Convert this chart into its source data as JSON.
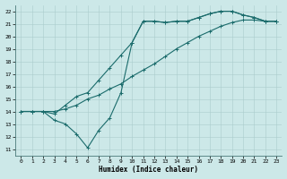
{
  "xlabel": "Humidex (Indice chaleur)",
  "bg_color": "#cce8e8",
  "line_color": "#1a6b6b",
  "grid_color": "#aacccc",
  "xlim": [
    -0.5,
    23.5
  ],
  "ylim": [
    10.5,
    22.5
  ],
  "xticks": [
    0,
    1,
    2,
    3,
    4,
    5,
    6,
    7,
    8,
    9,
    10,
    11,
    12,
    13,
    14,
    15,
    16,
    17,
    18,
    19,
    20,
    21,
    22,
    23
  ],
  "yticks": [
    11,
    12,
    13,
    14,
    15,
    16,
    17,
    18,
    19,
    20,
    21,
    22
  ],
  "line_straight": {
    "x": [
      0,
      1,
      2,
      3,
      4,
      5,
      6,
      7,
      8,
      9,
      10,
      11,
      12,
      13,
      14,
      15,
      16,
      17,
      18,
      19,
      20,
      21,
      22,
      23
    ],
    "y": [
      14,
      14,
      14,
      14,
      14.2,
      14.5,
      15.0,
      15.3,
      15.8,
      16.2,
      16.8,
      17.3,
      17.8,
      18.4,
      19.0,
      19.5,
      20.0,
      20.4,
      20.8,
      21.1,
      21.3,
      21.3,
      21.2,
      21.2
    ]
  },
  "line_middle": {
    "x": [
      0,
      1,
      2,
      3,
      4,
      5,
      6,
      7,
      8,
      9,
      10,
      11,
      12,
      13,
      14,
      15,
      16,
      17,
      18,
      19,
      20,
      21,
      22,
      23
    ],
    "y": [
      14,
      14,
      14,
      13.8,
      14.5,
      15.2,
      15.5,
      16.5,
      17.5,
      18.5,
      19.5,
      21.2,
      21.2,
      21.1,
      21.2,
      21.2,
      21.5,
      21.8,
      22.0,
      22.0,
      21.7,
      21.5,
      21.2,
      21.2
    ]
  },
  "line_jagged": {
    "x": [
      0,
      1,
      2,
      3,
      4,
      5,
      6,
      7,
      8,
      9,
      10,
      11,
      12,
      13,
      14,
      15,
      16,
      17,
      18,
      19,
      20,
      21,
      22,
      23
    ],
    "y": [
      14,
      14,
      14,
      13.3,
      13.0,
      12.2,
      11.1,
      12.5,
      13.5,
      15.5,
      19.5,
      21.2,
      21.2,
      21.1,
      21.2,
      21.2,
      21.5,
      21.8,
      22.0,
      22.0,
      21.7,
      21.5,
      21.2,
      21.2
    ]
  }
}
